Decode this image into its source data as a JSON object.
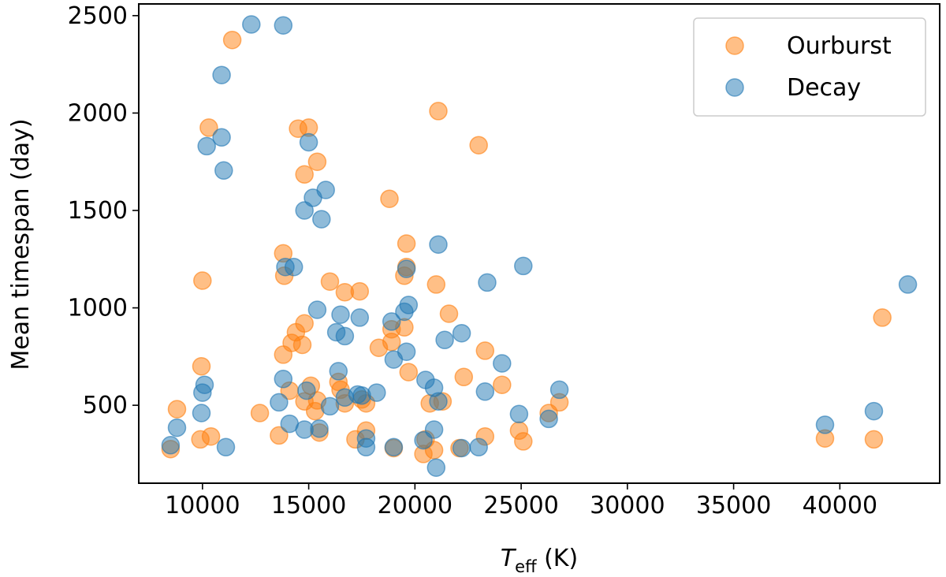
{
  "chart_data": {
    "type": "scatter",
    "title": "",
    "xlabel_main": "T",
    "xlabel_sub": "eff",
    "xlabel_unit": " (K)",
    "ylabel": "Mean timespan (day)",
    "xlim": [
      7000,
      44700
    ],
    "ylim": [
      100,
      2560
    ],
    "xticks": [
      10000,
      15000,
      20000,
      25000,
      30000,
      35000,
      40000
    ],
    "yticks": [
      500,
      1000,
      1500,
      2000,
      2500
    ],
    "grid": false,
    "legend_position": "top-right",
    "series": [
      {
        "name": "Ourburst",
        "color": "#ff7f0e",
        "points": [
          [
            8500,
            275
          ],
          [
            8800,
            480
          ],
          [
            9900,
            325
          ],
          [
            9950,
            700
          ],
          [
            10000,
            1140
          ],
          [
            10400,
            340
          ],
          [
            10300,
            1925
          ],
          [
            11400,
            2375
          ],
          [
            12700,
            460
          ],
          [
            13600,
            345
          ],
          [
            13800,
            760
          ],
          [
            13850,
            1165
          ],
          [
            13800,
            1280
          ],
          [
            14100,
            575
          ],
          [
            14200,
            820
          ],
          [
            14400,
            875
          ],
          [
            14500,
            1920
          ],
          [
            14700,
            810
          ],
          [
            14800,
            920
          ],
          [
            14800,
            1685
          ],
          [
            14800,
            520
          ],
          [
            15000,
            1925
          ],
          [
            15100,
            600
          ],
          [
            15300,
            470
          ],
          [
            15400,
            1750
          ],
          [
            15400,
            525
          ],
          [
            15500,
            360
          ],
          [
            16000,
            1135
          ],
          [
            16400,
            620
          ],
          [
            16500,
            580
          ],
          [
            16700,
            1080
          ],
          [
            16700,
            510
          ],
          [
            17200,
            325
          ],
          [
            17400,
            1085
          ],
          [
            17500,
            530
          ],
          [
            17700,
            510
          ],
          [
            17700,
            370
          ],
          [
            18300,
            795
          ],
          [
            18800,
            1560
          ],
          [
            18900,
            890
          ],
          [
            18900,
            825
          ],
          [
            19000,
            280
          ],
          [
            19500,
            1165
          ],
          [
            19500,
            900
          ],
          [
            19600,
            1330
          ],
          [
            19600,
            1210
          ],
          [
            19700,
            670
          ],
          [
            20400,
            250
          ],
          [
            20500,
            325
          ],
          [
            20700,
            510
          ],
          [
            20900,
            270
          ],
          [
            21000,
            1120
          ],
          [
            21100,
            2010
          ],
          [
            21300,
            520
          ],
          [
            21600,
            970
          ],
          [
            22100,
            280
          ],
          [
            22300,
            645
          ],
          [
            23000,
            1835
          ],
          [
            23300,
            780
          ],
          [
            23300,
            340
          ],
          [
            24100,
            605
          ],
          [
            24900,
            370
          ],
          [
            25100,
            315
          ],
          [
            26300,
            460
          ],
          [
            26800,
            515
          ],
          [
            39300,
            330
          ],
          [
            41600,
            325
          ],
          [
            42000,
            950
          ]
        ]
      },
      {
        "name": "Decay",
        "color": "#1f77b4",
        "points": [
          [
            8500,
            295
          ],
          [
            8800,
            385
          ],
          [
            9950,
            460
          ],
          [
            10000,
            565
          ],
          [
            10100,
            605
          ],
          [
            10200,
            1830
          ],
          [
            10900,
            2195
          ],
          [
            10900,
            1875
          ],
          [
            11000,
            1705
          ],
          [
            11100,
            285
          ],
          [
            12300,
            2455
          ],
          [
            13600,
            515
          ],
          [
            13800,
            635
          ],
          [
            13800,
            2450
          ],
          [
            13900,
            1210
          ],
          [
            14100,
            405
          ],
          [
            14300,
            1210
          ],
          [
            14800,
            1500
          ],
          [
            14800,
            375
          ],
          [
            14900,
            575
          ],
          [
            15000,
            1850
          ],
          [
            15200,
            1565
          ],
          [
            15400,
            990
          ],
          [
            15500,
            380
          ],
          [
            15600,
            1455
          ],
          [
            15800,
            1605
          ],
          [
            16000,
            495
          ],
          [
            16300,
            875
          ],
          [
            16400,
            675
          ],
          [
            16500,
            965
          ],
          [
            16700,
            855
          ],
          [
            16700,
            540
          ],
          [
            17300,
            555
          ],
          [
            17400,
            950
          ],
          [
            17500,
            550
          ],
          [
            17700,
            330
          ],
          [
            17700,
            285
          ],
          [
            18200,
            565
          ],
          [
            18900,
            930
          ],
          [
            19000,
            735
          ],
          [
            19000,
            285
          ],
          [
            19500,
            980
          ],
          [
            19600,
            775
          ],
          [
            19600,
            1200
          ],
          [
            19700,
            1015
          ],
          [
            20400,
            320
          ],
          [
            20500,
            630
          ],
          [
            20900,
            590
          ],
          [
            20900,
            375
          ],
          [
            21000,
            180
          ],
          [
            21100,
            520
          ],
          [
            21100,
            1325
          ],
          [
            21400,
            835
          ],
          [
            22200,
            870
          ],
          [
            22200,
            280
          ],
          [
            23000,
            285
          ],
          [
            23300,
            570
          ],
          [
            23400,
            1130
          ],
          [
            24100,
            715
          ],
          [
            24900,
            455
          ],
          [
            25100,
            1215
          ],
          [
            26300,
            430
          ],
          [
            26800,
            580
          ],
          [
            39300,
            400
          ],
          [
            41600,
            470
          ],
          [
            43200,
            1120
          ]
        ]
      }
    ]
  }
}
